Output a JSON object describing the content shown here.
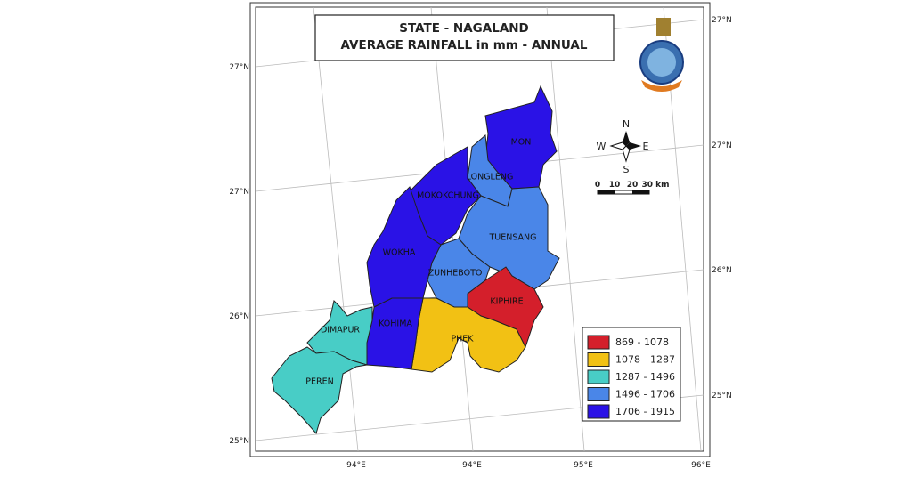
{
  "title": {
    "line1": "STATE - NAGALAND",
    "line2": "AVERAGE RAINFALL in mm - ANNUAL"
  },
  "districts": [
    {
      "name": "MON",
      "color": "#2a12e6"
    },
    {
      "name": "LONGLENG",
      "color": "#4a86e8"
    },
    {
      "name": "MOKOKCHUNG",
      "color": "#2a12e6"
    },
    {
      "name": "TUENSANG",
      "color": "#4a86e8"
    },
    {
      "name": "ZUNHEBOTO",
      "color": "#4a86e8"
    },
    {
      "name": "KIPHIRE",
      "color": "#d41f2b"
    },
    {
      "name": "PHEK",
      "color": "#f2c114"
    },
    {
      "name": "KOHIMA",
      "color": "#2a12e6"
    },
    {
      "name": "WOKHA",
      "color": "#2a12e6"
    },
    {
      "name": "DIMAPUR",
      "color": "#48cdc6"
    },
    {
      "name": "PEREN",
      "color": "#48cdc6"
    }
  ],
  "legend": [
    {
      "label": "869 - 1078",
      "color": "#d41f2b"
    },
    {
      "label": "1078 - 1287",
      "color": "#f2c114"
    },
    {
      "label": "1287 - 1496",
      "color": "#48cdc6"
    },
    {
      "label": "1496 - 1706",
      "color": "#4a86e8"
    },
    {
      "label": "1706 - 1915",
      "color": "#2a12e6"
    }
  ],
  "compass": {
    "n": "N",
    "s": "S",
    "w": "W",
    "e": "E"
  },
  "scale_bar": [
    "0",
    "10",
    "20",
    "30 km"
  ],
  "lat_labels_left": [
    "27°N",
    "27°N",
    "26°N",
    "25°N"
  ],
  "lat_labels_right": [
    "27°N",
    "27°N",
    "26°N",
    "25°N"
  ],
  "lon_labels_bottom": [
    "94°E",
    "94°E",
    "95°E",
    "96°E"
  ]
}
